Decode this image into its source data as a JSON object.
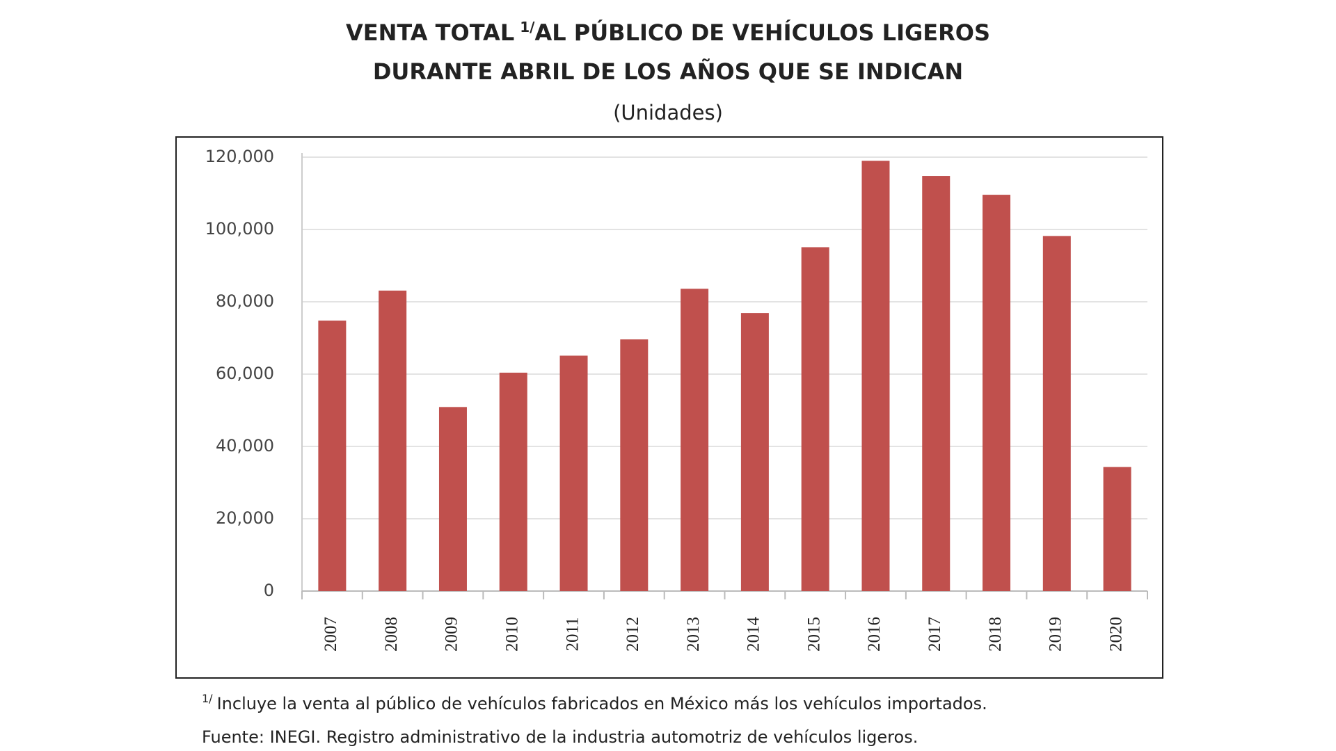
{
  "chart_data": {
    "type": "bar",
    "title": {
      "prefix": "VENTA TOTAL",
      "note_mark": "1/",
      "rest": "AL PÚBLICO DE VEHÍCULOS LIGEROS"
    },
    "title_line2": "DURANTE ABRIL DE LOS AÑOS QUE SE INDICAN",
    "subtitle": "(Unidades)",
    "categories": [
      "2007",
      "2008",
      "2009",
      "2010",
      "2011",
      "2012",
      "2013",
      "2014",
      "2015",
      "2016",
      "2017",
      "2018",
      "2019",
      "2020"
    ],
    "values": [
      74800,
      83100,
      50900,
      60400,
      65100,
      69600,
      83600,
      76900,
      95100,
      119000,
      114800,
      109600,
      98200,
      34300
    ],
    "color": "#c0504d",
    "ylim": [
      0,
      120000
    ],
    "yticks": [
      0,
      {
        "value": 20000,
        "label": "20,000"
      },
      {
        "value": 40000,
        "label": "40,000"
      },
      {
        "value": 60000,
        "label": "60,000"
      },
      {
        "value": 80000,
        "label": "80,000"
      },
      {
        "value": 100000,
        "label": "100,000"
      },
      {
        "value": 120000,
        "label": "120,000"
      }
    ],
    "grid": true,
    "note": {
      "mark": "1/",
      "text": "Incluye la venta al público de vehículos fabricados en México más los vehículos importados."
    },
    "source": "Fuente: INEGI. Registro administrativo de la industria automotriz de vehículos ligeros."
  }
}
